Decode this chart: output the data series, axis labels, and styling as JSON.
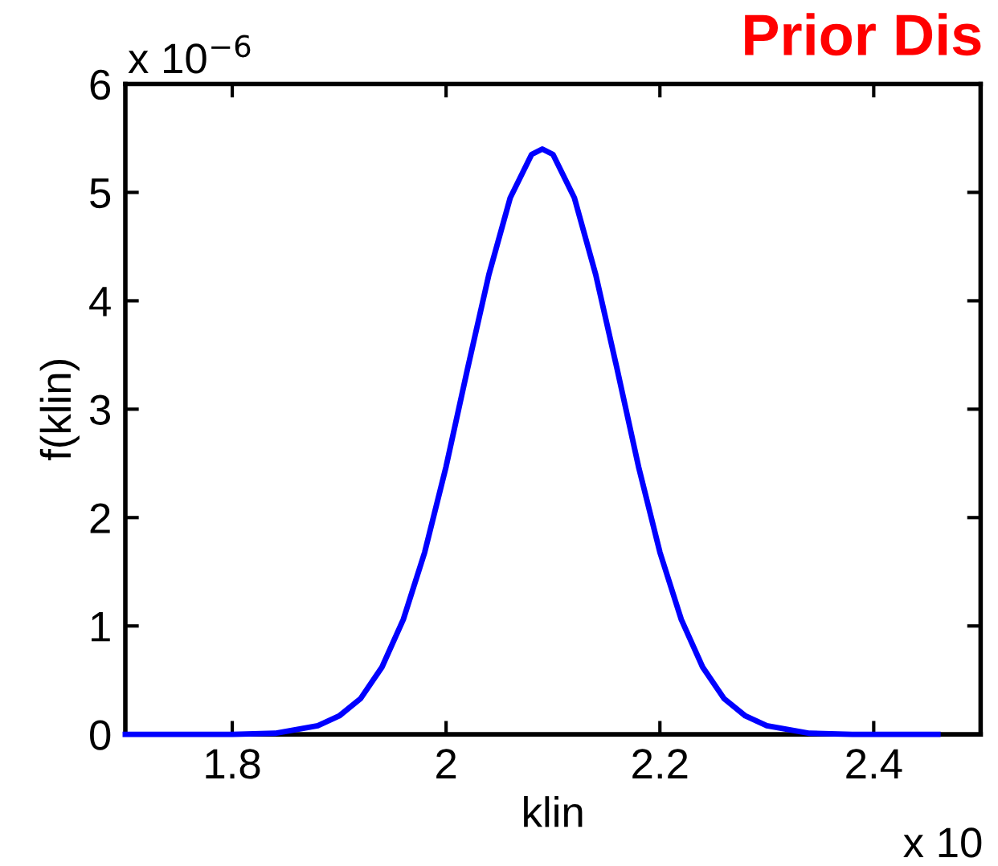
{
  "chart_data": {
    "type": "line",
    "title": "Prior Dis",
    "xlabel": "klin",
    "ylabel": "f(klin)",
    "annotations": [
      "x 10$^{−6}$",
      "x 10"
    ],
    "x": [
      1.7,
      1.8,
      1.84,
      1.88,
      1.9,
      1.92,
      1.94,
      1.96,
      1.98,
      2.0,
      2.02,
      2.04,
      2.06,
      2.08,
      2.09,
      2.1,
      2.12,
      2.14,
      2.16,
      2.18,
      2.2,
      2.22,
      2.24,
      2.26,
      2.28,
      2.3,
      2.34,
      2.38,
      2.46
    ],
    "series": [
      {
        "color": "#0000ff",
        "values": [
          0,
          0,
          0.01,
          0.08,
          0.17,
          0.33,
          0.62,
          1.06,
          1.68,
          2.47,
          3.37,
          4.24,
          4.95,
          5.35,
          5.4,
          5.35,
          4.95,
          4.24,
          3.37,
          2.47,
          1.68,
          1.06,
          0.62,
          0.33,
          0.17,
          0.08,
          0.01,
          0,
          0
        ]
      }
    ],
    "xlim": [
      1.7,
      2.5
    ],
    "ylim": [
      0,
      6
    ],
    "xticks": [
      1.8,
      2,
      2.2,
      2.4
    ],
    "yticks": [
      0,
      1,
      2,
      3,
      4,
      5,
      6
    ],
    "grid": false,
    "legend": false,
    "marker": "none",
    "line_style": "solid"
  }
}
